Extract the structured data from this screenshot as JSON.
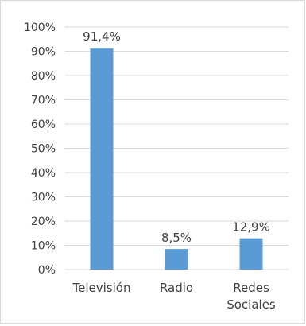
{
  "chart_data": {
    "type": "bar",
    "title": "",
    "xlabel": "",
    "ylabel": "",
    "categories": [
      [
        "Televisión"
      ],
      [
        "Radio"
      ],
      [
        "Redes",
        "Sociales"
      ]
    ],
    "values": [
      91.4,
      8.5,
      12.9
    ],
    "data_labels": [
      "91,4%",
      "8,5%",
      "12,9%"
    ],
    "ylim": [
      0,
      100
    ],
    "y_ticks": [
      {
        "value": 0,
        "label": "0%"
      },
      {
        "value": 10,
        "label": "10%"
      },
      {
        "value": 20,
        "label": "20%"
      },
      {
        "value": 30,
        "label": "30%"
      },
      {
        "value": 40,
        "label": "40%"
      },
      {
        "value": 50,
        "label": "50%"
      },
      {
        "value": 60,
        "label": "60%"
      },
      {
        "value": 70,
        "label": "70%"
      },
      {
        "value": 80,
        "label": "80%"
      },
      {
        "value": 90,
        "label": "90%"
      },
      {
        "value": 100,
        "label": "100%"
      }
    ],
    "grid": true,
    "legend": "none",
    "colors": {
      "bar": "#5b9bd5",
      "grid": "#d9d9d9",
      "text": "#404040",
      "frame": "#d9d9d9"
    }
  }
}
